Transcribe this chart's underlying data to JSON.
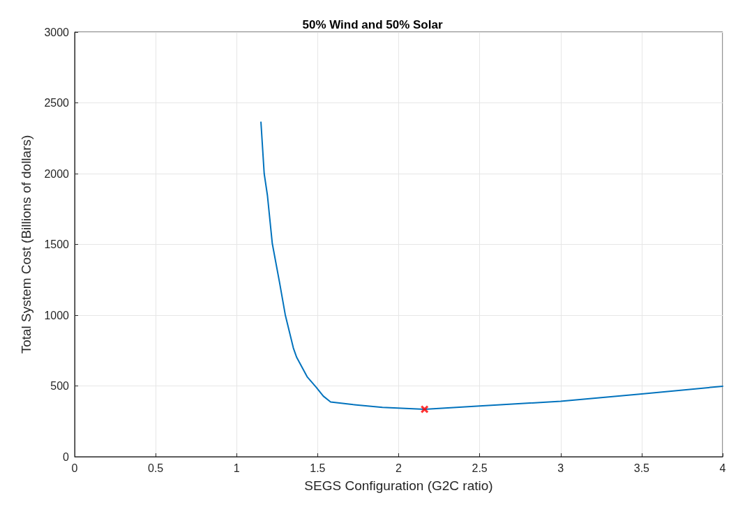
{
  "chart_data": {
    "type": "line",
    "title": "50% Wind and 50% Solar",
    "xlabel": "SEGS Configuration (G2C ratio)",
    "ylabel": "Total System Cost (Billions of dollars)",
    "xlim": [
      0,
      4
    ],
    "xticks": [
      0,
      0.5,
      1,
      1.5,
      2,
      2.5,
      3,
      3.5,
      4
    ],
    "ylim": [
      0,
      3000
    ],
    "yticks": [
      0,
      500,
      1000,
      1500,
      2000,
      2500,
      3000
    ],
    "grid": true,
    "marker": "none",
    "line_style": "solid",
    "series": [
      {
        "color": "#0072bd",
        "x": [
          1.15,
          1.17,
          1.19,
          1.22,
          1.265,
          1.3,
          1.35,
          1.37,
          1.435,
          1.49,
          1.535,
          1.58,
          1.72,
          1.9,
          2.16,
          2.5,
          3,
          3.5,
          4
        ],
        "values": [
          2363,
          2000,
          1846,
          1506,
          1230,
          1003,
          768,
          703,
          565,
          492,
          428,
          387,
          368,
          349,
          335,
          358,
          392,
          443,
          498
        ]
      },
      {
        "type": "scatter",
        "color": "#ff0000",
        "marker": "cross",
        "x": [
          2.16
        ],
        "values": [
          335
        ]
      }
    ]
  }
}
